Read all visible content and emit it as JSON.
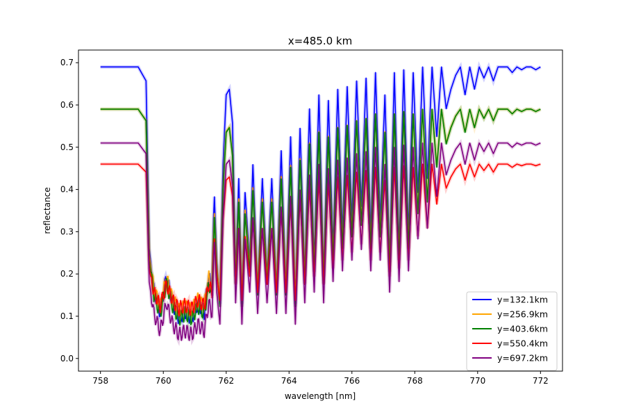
{
  "chart_data": {
    "type": "line",
    "title": "x=485.0 km",
    "xlabel": "wavelength [nm]",
    "ylabel": "reflectance",
    "xlim": [
      757.3,
      772.7
    ],
    "ylim": [
      -0.03,
      0.73
    ],
    "xticks": [
      758,
      760,
      762,
      764,
      766,
      768,
      770,
      772
    ],
    "yticks": [
      0.0,
      0.1,
      0.2,
      0.3,
      0.4,
      0.5,
      0.6,
      0.7
    ],
    "grid": false,
    "legend_position": "lower-right",
    "absorption_profile": {
      "x": [
        758.0,
        759.2,
        759.45,
        759.55,
        759.7,
        759.9,
        760.1,
        760.3,
        760.5,
        760.7,
        760.9,
        761.1,
        761.3,
        761.45,
        761.55,
        761.62,
        761.7,
        761.8,
        761.9,
        762.0,
        762.1,
        762.2,
        762.3,
        762.4,
        762.5,
        762.6,
        762.75,
        762.85,
        763.0,
        763.15,
        763.3,
        763.45,
        763.6,
        763.75,
        763.9,
        764.05,
        764.2,
        764.35,
        764.5,
        764.65,
        764.8,
        764.95,
        765.1,
        765.25,
        765.4,
        765.55,
        765.7,
        765.85,
        766.0,
        766.15,
        766.3,
        766.45,
        766.6,
        766.75,
        766.9,
        767.05,
        767.2,
        767.35,
        767.5,
        767.65,
        767.8,
        767.95,
        768.1,
        768.25,
        768.4,
        768.55,
        768.7,
        768.85,
        769.0,
        769.15,
        769.3,
        769.45,
        769.6,
        769.75,
        769.9,
        770.05,
        770.2,
        770.35,
        770.5,
        770.65,
        770.8,
        770.95,
        771.1,
        771.25,
        771.4,
        771.55,
        771.7,
        771.85,
        772.0
      ],
      "t": [
        1.0,
        1.0,
        0.95,
        0.35,
        0.2,
        0.12,
        0.25,
        0.15,
        0.1,
        0.12,
        0.1,
        0.15,
        0.12,
        0.25,
        0.2,
        0.55,
        0.3,
        0.15,
        0.65,
        0.9,
        0.92,
        0.8,
        0.25,
        0.6,
        0.15,
        0.55,
        0.3,
        0.65,
        0.2,
        0.6,
        0.25,
        0.6,
        0.2,
        0.7,
        0.2,
        0.75,
        0.15,
        0.78,
        0.25,
        0.85,
        0.3,
        0.9,
        0.25,
        0.88,
        0.35,
        0.92,
        0.4,
        0.93,
        0.45,
        0.95,
        0.5,
        0.96,
        0.4,
        0.98,
        0.45,
        0.9,
        0.3,
        0.98,
        0.35,
        0.99,
        0.4,
        0.98,
        0.55,
        1.0,
        0.6,
        1.0,
        0.75,
        1.0,
        0.85,
        0.92,
        0.97,
        1.0,
        0.9,
        1.0,
        0.92,
        1.0,
        0.96,
        1.0,
        0.95,
        1.0,
        1.0,
        1.0,
        0.98,
        1.0,
        0.99,
        1.0,
        1.0,
        0.99,
        1.0
      ]
    },
    "series": [
      {
        "name": "y=132.1km",
        "color": "#0000ff",
        "continuum": 0.69,
        "floor": 0.03
      },
      {
        "name": "y=256.9km",
        "color": "#ffa500",
        "continuum": 0.59,
        "floor": 0.06
      },
      {
        "name": "y=403.6km",
        "color": "#008000",
        "continuum": 0.59,
        "floor": 0.04
      },
      {
        "name": "y=550.4km",
        "color": "#ff0000",
        "continuum": 0.46,
        "floor": 0.08
      },
      {
        "name": "y=697.2km",
        "color": "#800080",
        "continuum": 0.51,
        "floor": 0.005
      }
    ]
  }
}
